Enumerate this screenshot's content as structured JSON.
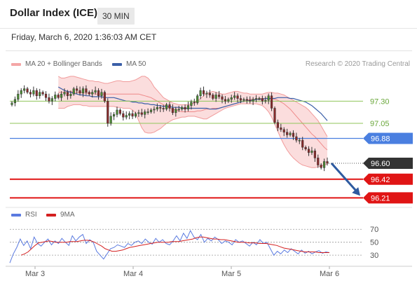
{
  "header": {
    "title": "Dollar Index (ICE)",
    "timeframe": "30 MIN"
  },
  "timestamp": "Friday, March 6, 2020 1:36:03 AM CET",
  "credit": "Research © 2020 Trading Central",
  "colors": {
    "bollinger": "#f4a6a6",
    "ma50": "#3b5fa8",
    "green": "#8fc65a",
    "blue": "#4a7fe0",
    "red": "#e01515",
    "dark": "#333333",
    "rsi": "#5b7be0",
    "ma9": "#d42020",
    "arrow": "#2d5aa0"
  },
  "chart_data": [
    {
      "type": "line",
      "title": "",
      "legend": [
        {
          "name": "MA 20 + Bollinger Bands",
          "color": "#f4a6a6"
        },
        {
          "name": "MA 50",
          "color": "#3b5fa8"
        }
      ],
      "x_ticks": [
        "Mar 3",
        "Mar 4",
        "Mar 5",
        "Mar 6"
      ],
      "price_range": [
        96.15,
        97.65
      ],
      "levels": [
        {
          "value": 97.3,
          "label": "97.30",
          "style": "green"
        },
        {
          "value": 97.05,
          "label": "97.05",
          "style": "green"
        },
        {
          "value": 96.88,
          "label": "96.88",
          "style": "blue"
        },
        {
          "value": 96.6,
          "label": "96.60",
          "style": "last"
        },
        {
          "value": 96.42,
          "label": "96.42",
          "style": "red"
        },
        {
          "value": 96.21,
          "label": "96.21",
          "style": "red"
        }
      ],
      "close": [
        97.28,
        97.32,
        97.38,
        97.42,
        97.44,
        97.4,
        97.38,
        97.42,
        97.36,
        97.4,
        97.38,
        97.34,
        97.3,
        97.33,
        97.37,
        97.34,
        97.38,
        97.4,
        97.36,
        97.38,
        97.44,
        97.42,
        97.39,
        97.44,
        97.4,
        97.38,
        97.4,
        97.42,
        97.36,
        97.4,
        97.3,
        97.05,
        97.13,
        97.15,
        97.2,
        97.16,
        97.12,
        97.14,
        97.16,
        97.13,
        97.16,
        97.17,
        97.15,
        97.18,
        97.18,
        97.2,
        97.21,
        97.23,
        97.22,
        97.21,
        97.26,
        97.22,
        97.17,
        97.21,
        97.21,
        97.23,
        97.21,
        97.25,
        97.29,
        97.28,
        97.36,
        97.42,
        97.38,
        97.39,
        97.37,
        97.33,
        97.37,
        97.35,
        97.32,
        97.3,
        97.32,
        97.34,
        97.36,
        97.33,
        97.31,
        97.32,
        97.31,
        97.3,
        97.32,
        97.33,
        97.33,
        97.3,
        97.31,
        97.36,
        97.22,
        97.06,
        97.0,
        96.98,
        96.95,
        96.92,
        96.94,
        96.9,
        96.86,
        96.86,
        96.78,
        96.76,
        96.72,
        96.74,
        96.66,
        96.58,
        96.55,
        96.62,
        96.6
      ],
      "ma50": [
        97.46,
        97.44,
        97.42,
        97.41,
        97.4,
        97.39,
        97.38,
        97.37,
        97.37,
        97.36,
        97.36,
        97.35,
        97.35,
        97.35,
        97.35,
        97.34,
        97.34,
        97.34,
        97.34,
        97.33,
        97.32,
        97.31,
        97.3,
        97.3,
        97.29,
        97.29,
        97.28,
        97.28,
        97.27,
        97.27,
        97.26,
        97.26,
        97.25,
        97.25,
        97.24,
        97.24,
        97.24,
        97.23,
        97.23,
        97.23,
        97.22,
        97.22,
        97.22,
        97.22,
        97.22,
        97.22,
        97.22,
        97.22,
        97.22,
        97.21,
        97.21,
        97.21,
        97.22,
        97.23,
        97.24,
        97.25,
        97.26,
        97.27,
        97.28,
        97.29,
        97.3,
        97.3,
        97.31,
        97.31,
        97.32,
        97.32,
        97.32,
        97.33,
        97.33,
        97.33,
        97.33,
        97.34,
        97.34,
        97.34,
        97.34,
        97.33,
        97.33,
        97.32,
        97.31,
        97.3,
        97.29,
        97.27,
        97.25,
        97.22,
        97.19,
        97.16,
        97.12,
        97.08
      ],
      "ma20": [
        97.4,
        97.4,
        97.4,
        97.41,
        97.41,
        97.4,
        97.4,
        97.4,
        97.39,
        97.39,
        97.39,
        97.39,
        97.38,
        97.38,
        97.38,
        97.38,
        97.38,
        97.38,
        97.38,
        97.38,
        97.38,
        97.38,
        97.38,
        97.38,
        97.38,
        97.38,
        97.38,
        97.37,
        97.36,
        97.35,
        97.34,
        97.32,
        97.3,
        97.28,
        97.26,
        97.24,
        97.22,
        97.21,
        97.2,
        97.19,
        97.18,
        97.18,
        97.18,
        97.18,
        97.18,
        97.19,
        97.19,
        97.2,
        97.21,
        97.21,
        97.22,
        97.22,
        97.22,
        97.23,
        97.24,
        97.25,
        97.26,
        97.27,
        97.28,
        97.29,
        97.3,
        97.31,
        97.32,
        97.32,
        97.32,
        97.33,
        97.33,
        97.33,
        97.33,
        97.33,
        97.32,
        97.31,
        97.29,
        97.27,
        97.24,
        97.21,
        97.17,
        97.13,
        97.09,
        97.05,
        97.01,
        96.97,
        96.93,
        96.9,
        96.86,
        96.82,
        96.78,
        96.75
      ],
      "bb_upper": [
        97.58,
        97.56,
        97.56,
        97.57,
        97.58,
        97.58,
        97.57,
        97.56,
        97.55,
        97.54,
        97.53,
        97.53,
        97.52,
        97.52,
        97.51,
        97.5,
        97.5,
        97.51,
        97.52,
        97.53,
        97.53,
        97.52,
        97.52,
        97.52,
        97.53,
        97.54,
        97.56,
        97.58,
        97.58,
        97.56,
        97.52,
        97.46,
        97.42,
        97.38,
        97.34,
        97.32,
        97.3,
        97.28,
        97.27,
        97.26,
        97.26,
        97.26,
        97.26,
        97.27,
        97.28,
        97.3,
        97.33,
        97.36,
        97.39,
        97.4,
        97.41,
        97.4,
        97.39,
        97.38,
        97.38,
        97.39,
        97.4,
        97.41,
        97.41,
        97.4,
        97.39,
        97.39,
        97.38,
        97.38,
        97.38,
        97.38,
        97.38,
        97.39,
        97.4,
        97.4,
        97.39,
        97.39,
        97.38,
        97.37,
        97.35,
        97.33,
        97.31,
        97.29,
        97.27,
        97.25,
        97.23,
        97.2,
        97.16,
        97.12,
        97.08,
        97.02,
        96.96,
        96.9
      ],
      "bb_lower": [
        97.22,
        97.22,
        97.22,
        97.24,
        97.25,
        97.26,
        97.26,
        97.26,
        97.25,
        97.25,
        97.24,
        97.24,
        97.24,
        97.24,
        97.24,
        97.24,
        97.24,
        97.24,
        97.24,
        97.23,
        97.23,
        97.22,
        97.22,
        97.22,
        97.2,
        97.16,
        97.08,
        97.0,
        96.95,
        96.94,
        96.94,
        96.95,
        96.97,
        96.99,
        97.02,
        97.05,
        97.07,
        97.09,
        97.1,
        97.11,
        97.12,
        97.12,
        97.13,
        97.13,
        97.13,
        97.12,
        97.11,
        97.1,
        97.1,
        97.12,
        97.14,
        97.16,
        97.18,
        97.2,
        97.22,
        97.23,
        97.24,
        97.25,
        97.26,
        97.27,
        97.27,
        97.27,
        97.27,
        97.27,
        97.27,
        97.26,
        97.25,
        97.22,
        97.18,
        97.12,
        97.04,
        96.96,
        96.88,
        96.81,
        96.75,
        96.7,
        96.66,
        96.63,
        96.6,
        96.58,
        96.57,
        96.56,
        96.55,
        96.55,
        96.56,
        96.57,
        96.58,
        96.59
      ]
    },
    {
      "type": "line",
      "title": "",
      "legend": [
        {
          "name": "RSI",
          "color": "#5b7be0"
        },
        {
          "name": "9MA",
          "color": "#d42020"
        }
      ],
      "y_ticks": [
        70,
        50,
        30
      ],
      "y_range": [
        15,
        80
      ],
      "rsi": [
        18,
        32,
        42,
        55,
        45,
        52,
        40,
        58,
        48,
        44,
        50,
        55,
        46,
        52,
        48,
        56,
        50,
        45,
        60,
        52,
        58,
        62,
        48,
        54,
        50,
        36,
        30,
        24,
        32,
        40,
        42,
        46,
        44,
        42,
        48,
        45,
        50,
        52,
        48,
        55,
        50,
        47,
        56,
        50,
        54,
        48,
        46,
        52,
        60,
        52,
        64,
        56,
        68,
        58,
        54,
        62,
        50,
        56,
        52,
        58,
        54,
        48,
        52,
        50,
        46,
        54,
        50,
        52,
        48,
        44,
        50,
        46,
        54,
        48,
        50,
        40,
        30,
        36,
        32,
        38,
        34,
        40,
        36,
        32,
        38,
        33,
        36,
        32,
        35,
        37,
        33,
        35,
        34
      ],
      "ma9": [
        30,
        32,
        35,
        40,
        45,
        49,
        50,
        51,
        52,
        51,
        50,
        50,
        50,
        50,
        51,
        51,
        51,
        52,
        53,
        53,
        52,
        50,
        47,
        44,
        40,
        38,
        36,
        36,
        37,
        38,
        40,
        42,
        43,
        44,
        45,
        46,
        47,
        48,
        49,
        50,
        50,
        50,
        50,
        51,
        51,
        51,
        52,
        53,
        54,
        55,
        57,
        58,
        58,
        57,
        56,
        55,
        55,
        54,
        54,
        53,
        52,
        51,
        50,
        50,
        50,
        49,
        49,
        49,
        48,
        48,
        48,
        47,
        46,
        45,
        43,
        41,
        40,
        39,
        38,
        37,
        36,
        35,
        35,
        35,
        35,
        34,
        34,
        34,
        34
      ]
    }
  ]
}
